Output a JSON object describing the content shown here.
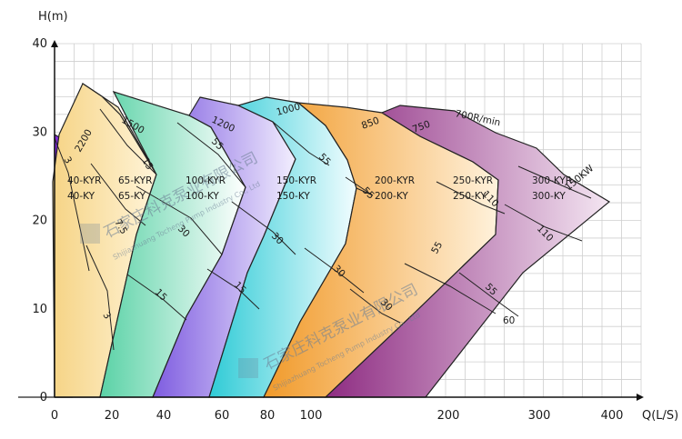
{
  "chart_data": {
    "type": "area",
    "title": "",
    "xlabel": "Q(L/S)",
    "ylabel": "H(m)",
    "ylim": [
      0,
      40
    ],
    "y_ticks": [
      "0",
      "10",
      "20",
      "30",
      "40"
    ],
    "x_ticks": [
      "0",
      "20",
      "40",
      "60",
      "80",
      "100",
      "200",
      "300",
      "400"
    ],
    "grid": true,
    "series": [
      {
        "pump_size": "40",
        "model_kyr": "40-KYR",
        "model_ky": "40-KY",
        "speed": "2200",
        "color": "#9a3ee6",
        "power_labels": [
          "3"
        ]
      },
      {
        "pump_size": "65",
        "model_kyr": "65-KYR",
        "model_ky": "65-KY",
        "speed": "1500",
        "color": "#f2c45e",
        "power_labels": [
          "15",
          "7.5",
          "3"
        ]
      },
      {
        "pump_size": "100",
        "model_kyr": "100-KYR",
        "model_ky": "100-KY",
        "speed": "1200",
        "color": "#5ad2a6",
        "power_labels": [
          "55",
          "30",
          "15"
        ]
      },
      {
        "pump_size": "150",
        "model_kyr": "150-KYR",
        "model_ky": "150-KY",
        "speed": "1000",
        "color": "#8c6be6",
        "power_labels": [
          "55",
          "30",
          "15"
        ]
      },
      {
        "pump_size": "200",
        "model_kyr": "200-KYR",
        "model_ky": "200-KY",
        "speed": "850",
        "color": "#37d0d6",
        "power_labels": [
          "55",
          "30"
        ]
      },
      {
        "pump_size": "250",
        "model_kyr": "250-KYR",
        "model_ky": "250-KY",
        "speed": "750",
        "color": "#f3a23a",
        "power_labels": [
          "110",
          "55"
        ]
      },
      {
        "pump_size": "300",
        "model_kyr": "300-KYR",
        "model_ky": "300-KY",
        "speed": "700R/min",
        "color": "#9c3c8e",
        "power_labels": [
          "150KW",
          "110",
          "60"
        ]
      }
    ]
  },
  "watermark": {
    "chinese": "石家庄科克泵业有限公司",
    "english": "Shijiazhuang Tocheng Pump Industry Co., Ltd"
  }
}
